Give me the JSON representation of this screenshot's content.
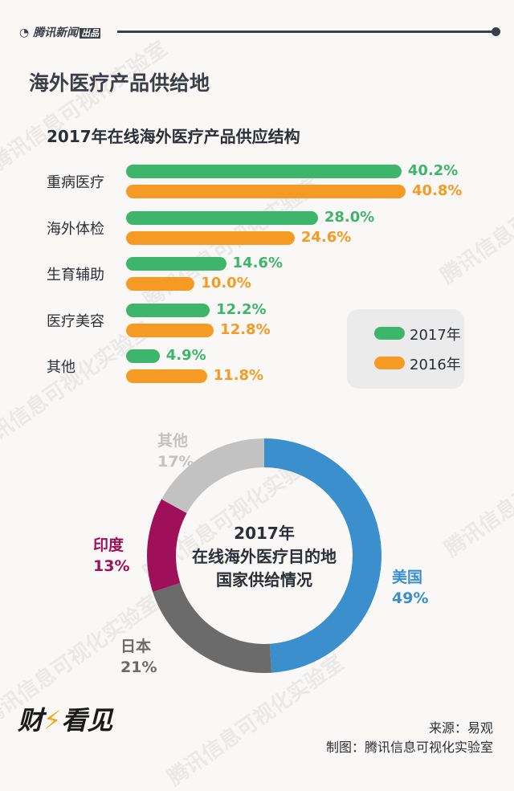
{
  "header": {
    "brand": "腾讯新闻",
    "brand_tag": "出品",
    "title": "海外医疗产品供给地"
  },
  "watermark": "腾讯信息可视化实验室",
  "chart_data": [
    {
      "type": "bar",
      "orientation": "horizontal",
      "title": "2017年在线海外医疗产品供应结构",
      "categories": [
        "重病医疗",
        "海外体检",
        "生育辅助",
        "医疗美容",
        "其他"
      ],
      "series": [
        {
          "name": "2017年",
          "color": "#3db56a",
          "values": [
            40.2,
            28.0,
            14.6,
            12.2,
            4.9
          ],
          "labels": [
            "40.2%",
            "28.0%",
            "14.6%",
            "12.2%",
            "4.9%"
          ]
        },
        {
          "name": "2016年",
          "color": "#f59a23",
          "values": [
            40.8,
            24.6,
            10.0,
            12.8,
            11.8
          ],
          "labels": [
            "40.8%",
            "24.6%",
            "10.0%",
            "12.8%",
            "11.8%"
          ]
        }
      ],
      "legend": "bottom-right",
      "grid": false
    },
    {
      "type": "pie",
      "variant": "donut",
      "title_lines": [
        "2017年",
        "在线海外医疗目的地",
        "国家供给情况"
      ],
      "slices": [
        {
          "label": "美国",
          "value": 49,
          "pct": "49%",
          "color": "#3a8fcc"
        },
        {
          "label": "日本",
          "value": 21,
          "pct": "21%",
          "color": "#6b6b6b"
        },
        {
          "label": "印度",
          "value": 13,
          "pct": "13%",
          "color": "#a0105a"
        },
        {
          "label": "其他",
          "value": 17,
          "pct": "17%",
          "color": "#c2c2c2"
        }
      ]
    }
  ],
  "footer": {
    "logo": "财看见",
    "source": "来源：易观",
    "credit": "制图：腾讯信息可视化实验室"
  }
}
